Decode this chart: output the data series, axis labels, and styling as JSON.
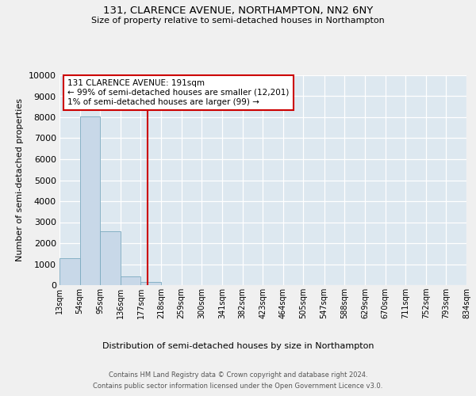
{
  "title": "131, CLARENCE AVENUE, NORTHAMPTON, NN2 6NY",
  "subtitle": "Size of property relative to semi-detached houses in Northampton",
  "xlabel": "Distribution of semi-detached houses by size in Northampton",
  "ylabel": "Number of semi-detached properties",
  "bin_edges": [
    13,
    54,
    95,
    136,
    177,
    218,
    259,
    300,
    341,
    382,
    423,
    464,
    505,
    547,
    588,
    629,
    670,
    711,
    752,
    793,
    834
  ],
  "bin_counts": [
    1300,
    8050,
    2550,
    400,
    150,
    0,
    0,
    0,
    0,
    0,
    0,
    0,
    0,
    0,
    0,
    0,
    0,
    0,
    0,
    0
  ],
  "bar_color": "#c8d8e8",
  "bar_edgecolor": "#7aaabf",
  "property_size": 191,
  "vline_color": "#cc0000",
  "ylim": [
    0,
    10000
  ],
  "yticks": [
    0,
    1000,
    2000,
    3000,
    4000,
    5000,
    6000,
    7000,
    8000,
    9000,
    10000
  ],
  "annotation_title": "131 CLARENCE AVENUE: 191sqm",
  "annotation_line1": "← 99% of semi-detached houses are smaller (12,201)",
  "annotation_line2": "1% of semi-detached houses are larger (99) →",
  "annotation_box_color": "#ffffff",
  "annotation_box_edgecolor": "#cc0000",
  "footer_line1": "Contains HM Land Registry data © Crown copyright and database right 2024.",
  "footer_line2": "Contains public sector information licensed under the Open Government Licence v3.0.",
  "background_color": "#dde8f0",
  "grid_color": "#ffffff",
  "fig_background": "#f0f0f0",
  "tick_labels": [
    "13sqm",
    "54sqm",
    "95sqm",
    "136sqm",
    "177sqm",
    "218sqm",
    "259sqm",
    "300sqm",
    "341sqm",
    "382sqm",
    "423sqm",
    "464sqm",
    "505sqm",
    "547sqm",
    "588sqm",
    "629sqm",
    "670sqm",
    "711sqm",
    "752sqm",
    "793sqm",
    "834sqm"
  ]
}
